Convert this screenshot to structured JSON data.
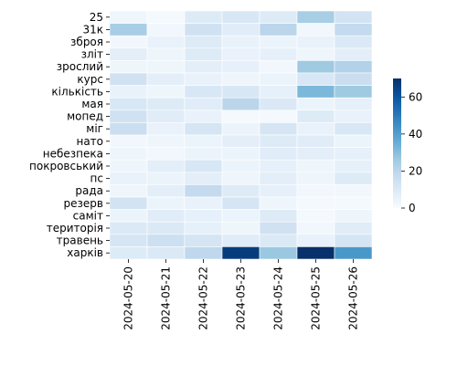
{
  "chart_data": {
    "type": "heatmap",
    "title": "",
    "xlabel": "",
    "ylabel": "",
    "x_categories": [
      "2024-05-20",
      "2024-05-21",
      "2024-05-22",
      "2024-05-23",
      "2024-05-24",
      "2024-05-25",
      "2024-05-26"
    ],
    "y_categories": [
      "25",
      "31к",
      "зброя",
      "зліт",
      "зрослий",
      "курс",
      "кількість",
      "мая",
      "мопед",
      "міг",
      "нато",
      "небезпека",
      "покровський",
      "пс",
      "рада",
      "резерв",
      "саміт",
      "територія",
      "травень",
      "харків"
    ],
    "values": [
      [
        3,
        1,
        9,
        11,
        9,
        24,
        13
      ],
      [
        24,
        2,
        14,
        8,
        20,
        2,
        18
      ],
      [
        2,
        5,
        9,
        5,
        4,
        5,
        10
      ],
      [
        7,
        3,
        9,
        5,
        6,
        3,
        7
      ],
      [
        3,
        3,
        7,
        6,
        2,
        26,
        22
      ],
      [
        14,
        7,
        5,
        3,
        4,
        11,
        16
      ],
      [
        5,
        3,
        11,
        11,
        6,
        32,
        26
      ],
      [
        11,
        9,
        8,
        20,
        10,
        4,
        6
      ],
      [
        14,
        8,
        5,
        1,
        1,
        9,
        5
      ],
      [
        16,
        5,
        12,
        4,
        12,
        5,
        11
      ],
      [
        2,
        3,
        4,
        7,
        9,
        8,
        4
      ],
      [
        3,
        2,
        4,
        4,
        8,
        7,
        6
      ],
      [
        3,
        7,
        11,
        4,
        6,
        3,
        6
      ],
      [
        5,
        4,
        7,
        3,
        7,
        3,
        9
      ],
      [
        3,
        7,
        18,
        9,
        6,
        2,
        2
      ],
      [
        13,
        4,
        5,
        12,
        3,
        1,
        1
      ],
      [
        4,
        8,
        6,
        4,
        9,
        1,
        3
      ],
      [
        10,
        10,
        6,
        3,
        14,
        2,
        8
      ],
      [
        12,
        15,
        12,
        8,
        10,
        5,
        12
      ],
      [
        9,
        10,
        19,
        67,
        27,
        70,
        42
      ]
    ],
    "colorbar": {
      "min": 0,
      "max": 70,
      "ticks": [
        0,
        20,
        40,
        60
      ]
    },
    "colormap": "Blues",
    "colors": {
      "low": "#f7fbff",
      "high": "#08306b"
    },
    "grid": false,
    "cell_borders": true,
    "cell_border_color": "#ffffff"
  }
}
